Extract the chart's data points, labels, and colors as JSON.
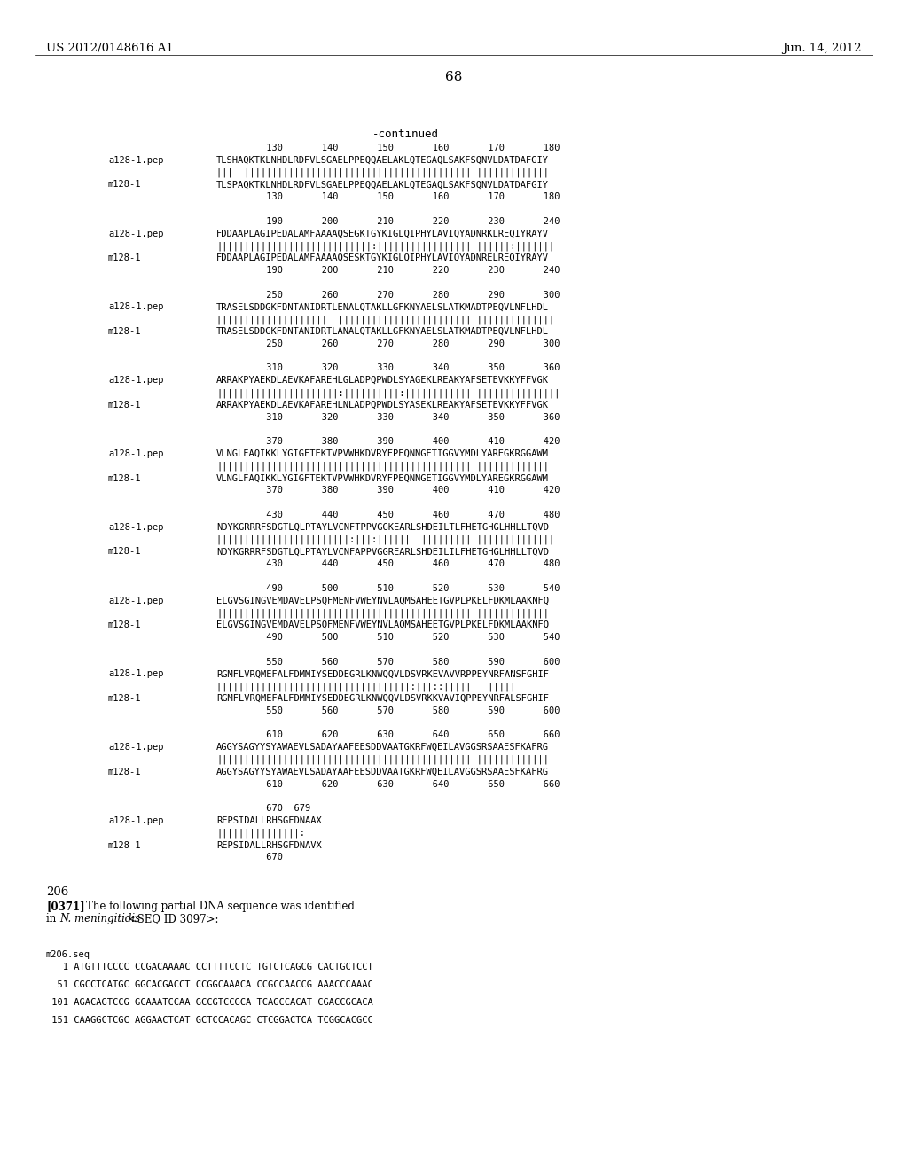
{
  "header_left": "US 2012/0148616 A1",
  "header_right": "Jun. 14, 2012",
  "page_number": "68",
  "continued_label": "-continued",
  "background_color": "#ffffff",
  "sequence_blocks": [
    {
      "nums_top": "         130       140       150       160       170       180",
      "label1": "a128-1.pep",
      "seq1": "TLSHAQKTKLNHDLRDFVLSGAELPPEQQAELAKLQTEGAQLSAKFSQNVLDATDAFGIY",
      "match": "|||  |||||||||||||||||||||||||||||||||||||||||||||||||||||||",
      "label2": "m128-1",
      "seq2": "TLSPAQKTKLNHDLRDFVLSGAELPPEQQAELAKLQTEGAQLSAKFSQNVLDATDAFGIY",
      "nums_bot": "         130       140       150       160       170       180"
    },
    {
      "nums_top": "         190       200       210       220       230       240",
      "label1": "a128-1.pep",
      "seq1": "FDDAAPLAGIPEDALAMFAAAAQSEGKTGYKIGLQIPHYLAVIQYADNRKLREQIYRAYV",
      "match": "||||||||||||||||||||||||||||:||||||||||||||||||||||||:|||||||",
      "label2": "m128-1",
      "seq2": "FDDAAPLAGIPEDALAMFAAAAQSESKTGYKIGLQIPHYLAVIQYADNRELREQIYRAYV",
      "nums_bot": "         190       200       210       220       230       240"
    },
    {
      "nums_top": "         250       260       270       280       290       300",
      "label1": "a128-1.pep",
      "seq1": "TRASELSDDGKFDNTANIDRTLENALQTAKLLGFKNYAELSLATKMADTPEQVLNFLHDL",
      "match": "||||||||||||||||||||  |||||||||||||||||||||||||||||||||||||||",
      "label2": "m128-1",
      "seq2": "TRASELSDDGKFDNTANIDRTLANALQTAKLLGFKNYAELSLATKMADTPEQVLNFLHDL",
      "nums_bot": "         250       260       270       280       290       300"
    },
    {
      "nums_top": "         310       320       330       340       350       360",
      "label1": "a128-1.pep",
      "seq1": "ARRAKPYAEKDLAEVKAFAREHLGLADPQPWDLSYAGEKLREAKYAFSETEVKKYFFVGK",
      "match": "||||||||||||||||||||||:||||||||||:||||||||||||||||||||||||||||",
      "label2": "m128-1",
      "seq2": "ARRAKPYAEKDLAEVKAFAREHLNLADPQPWDLSYASEKLREAKYAFSETEVKKYFFVGK",
      "nums_bot": "         310       320       330       340       350       360"
    },
    {
      "nums_top": "         370       380       390       400       410       420",
      "label1": "a128-1.pep",
      "seq1": "VLNGLFAQIKKLYGIGFTEKTVPVWHKDVRYFPEQNNGETIGGVYMDLYAREGKRGGAWM",
      "match": "||||||||||||||||||||||||||||||||||||||||||||||||||||||||||||",
      "label2": "m128-1",
      "seq2": "VLNGLFAQIKKLYGIGFTEKTVPVWHKDVRYFPEQNNGETIGGVYMDLYAREGKRGGAWM",
      "nums_bot": "         370       380       390       400       410       420"
    },
    {
      "nums_top": "         430       440       450       460       470       480",
      "label1": "a128-1.pep",
      "seq1": "NDYKGRRRFSDGTLQLPTAYLVCNFTPPVGGKEARLSHDEILTLFHETGHGLHHLLTQVD",
      "match": "||||||||||||||||||||||||:|||:||||||  ||||||||||||||||||||||||",
      "label2": "m128-1",
      "seq2": "NDYKGRRRFSDGTLQLPTAYLVCNFAPPVGGREARLSHDEILILFHETGHGLHHLLTQVD",
      "nums_bot": "         430       440       450       460       470       480"
    },
    {
      "nums_top": "         490       500       510       520       530       540",
      "label1": "a128-1.pep",
      "seq1": "ELGVSGINGVEMDAVELPSQFMENFVWEYNVLAQMSAHEETGVPLPKELFDKMLAAKNFQ",
      "match": "||||||||||||||||||||||||||||||||||||||||||||||||||||||||||||",
      "label2": "m128-1",
      "seq2": "ELGVSGINGVEMDAVELPSQFMENFVWEYNVLAQMSAHEETGVPLPKELFDKMLAAKNFQ",
      "nums_bot": "         490       500       510       520       530       540"
    },
    {
      "nums_top": "         550       560       570       580       590       600",
      "label1": "a128-1.pep",
      "seq1": "RGMFLVRQMEFALFDMMIYSEDDEGRLKNWQQVLDSVRKEVAVVRPPEYNRFANSFGHIF",
      "match": "|||||||||||||||||||||||||||||||||||:|||::||||||  |||||",
      "label2": "m128-1",
      "seq2": "RGMFLVRQMEFALFDMMIYSEDDEGRLKNWQQVLDSVRKKVAVIQPPEYNRFALSFGHIF",
      "nums_bot": "         550       560       570       580       590       600"
    },
    {
      "nums_top": "         610       620       630       640       650       660",
      "label1": "a128-1.pep",
      "seq1": "AGGYSAGYYSYAWAEVLSADAYAAFEESDDVAATGKRFWQEILAVGGSRSAAESFKAFRG",
      "match": "||||||||||||||||||||||||||||||||||||||||||||||||||||||||||||",
      "label2": "m128-1",
      "seq2": "AGGYSAGYYSYAWAEVLSADAYAAFEESDDVAATGKRFWQEILAVGGSRSAAESFKAFRG",
      "nums_bot": "         610       620       630       640       650       660"
    },
    {
      "nums_top": "         670  679",
      "label1": "a128-1.pep",
      "seq1": "REPSIDALLRHSGFDNAAX",
      "match": "|||||||||||||||:",
      "label2": "m128-1",
      "seq2": "REPSIDALLRHSGFDNAVX",
      "nums_bot": "         670"
    }
  ],
  "section_206": "206",
  "dna_label": "m206.seq",
  "dna_lines": [
    "   1 ATGTTTCCCC CCGACAAAAC CCTTTTCCTC TGTCTCAGCG CACTGCTCCT",
    "  51 CGCCTCATGC GGCACGACCT CCGGCAAACA CCGCCAACCG AAACCCAAAC",
    " 101 AGACAGTCCG GCAAATCCAA GCCGTCCGCA TCAGCCACAT CGACCGCACA",
    " 151 CAAGGCTCGC AGGAACTCAT GCTCCACAGC CTCGGACTCA TCGGCACGCC"
  ]
}
